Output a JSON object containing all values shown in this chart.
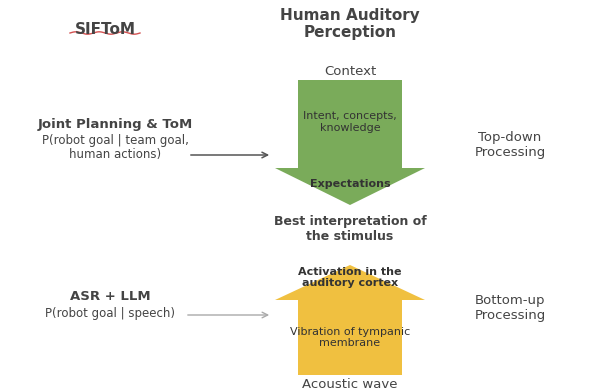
{
  "title_sifto": "SIFToM",
  "title_hap": "Human Auditory\nPerception",
  "context_label": "Context",
  "acoustic_label": "Acoustic wave",
  "best_interp_label": "Best interpretation of\nthe stimulus",
  "green_arrow_top_text": "Intent, concepts,\nknowledge",
  "green_arrow_bottom_text": "Expectations",
  "yellow_arrow_top_text": "Activation in the\nauditory cortex",
  "yellow_arrow_bottom_text": "Vibration of tympanic\nmembrane",
  "left_top_bold": "Joint Planning & ToM",
  "left_top_line1": "P(robot goal | team goal,",
  "left_top_line2": "human actions)",
  "left_bottom_bold": "ASR + LLM",
  "left_bottom_normal": "P(robot goal | speech)",
  "right_top_label": "Top-down\nProcessing",
  "right_bottom_label": "Bottom-up\nProcessing",
  "green_color": "#7aab5a",
  "yellow_color": "#f0c040",
  "background_color": "#ffffff",
  "text_dark": "#444444",
  "text_inside_arrow": "#333333",
  "underline_color": "#cc3333",
  "arrow_dark_color": "#555555",
  "arrow_light_color": "#aaaaaa"
}
